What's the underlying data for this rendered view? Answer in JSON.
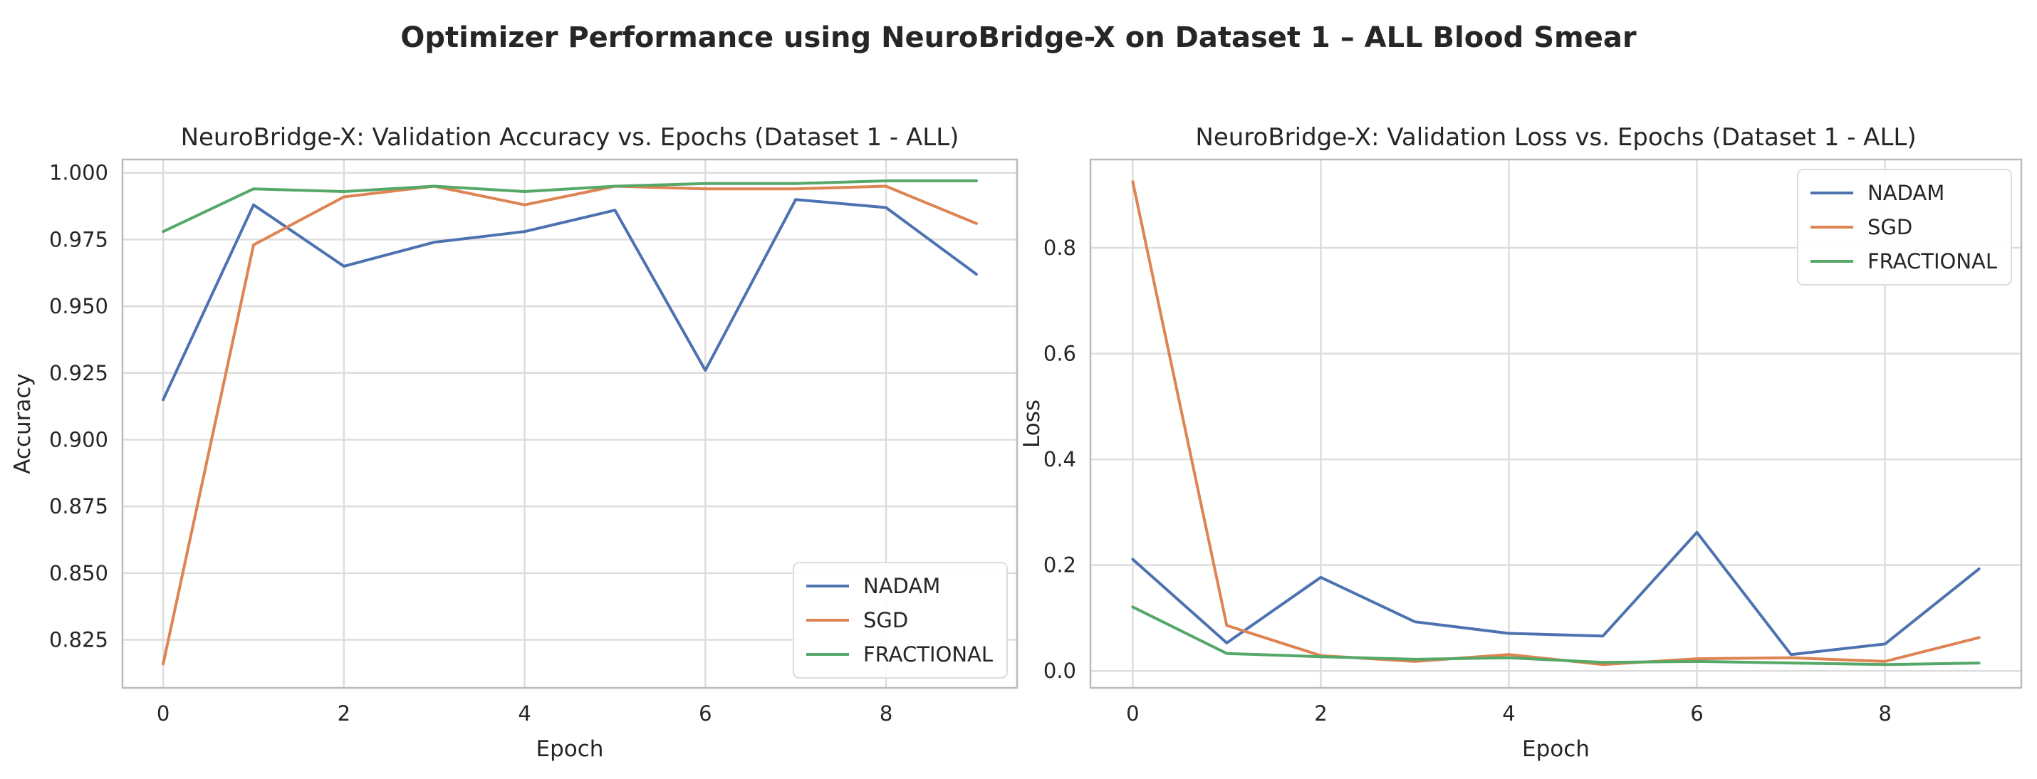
{
  "figure": {
    "suptitle": "Optimizer Performance using NeuroBridge-X on Dataset 1 – ALL Blood Smear"
  },
  "colors": {
    "NADAM": "#4c72b0",
    "SGD": "#dd8452",
    "FRACTIONAL": "#55a868",
    "grid": "#dddddd",
    "spine": "#bbbbbb"
  },
  "chart_data": [
    {
      "type": "line",
      "title": "NeuroBridge-X: Validation Accuracy vs. Epochs (Dataset 1 - ALL)",
      "xlabel": "Epoch",
      "ylabel": "Accuracy",
      "x": [
        0,
        1,
        2,
        3,
        4,
        5,
        6,
        7,
        8,
        9
      ],
      "xlim": [
        -0.45,
        9.45
      ],
      "ylim": [
        0.807,
        1.005
      ],
      "xticks": [
        0,
        2,
        4,
        6,
        8
      ],
      "xtick_labels": [
        "0",
        "2",
        "4",
        "6",
        "8"
      ],
      "yticks": [
        0.825,
        0.85,
        0.875,
        0.9,
        0.925,
        0.95,
        0.975,
        1.0
      ],
      "ytick_labels": [
        "0.825",
        "0.850",
        "0.875",
        "0.900",
        "0.925",
        "0.950",
        "0.975",
        "1.000"
      ],
      "grid": true,
      "legend_position": "lower-right",
      "series": [
        {
          "name": "NADAM",
          "values": [
            0.915,
            0.988,
            0.965,
            0.974,
            0.978,
            0.986,
            0.926,
            0.99,
            0.987,
            0.962
          ]
        },
        {
          "name": "SGD",
          "values": [
            0.816,
            0.973,
            0.991,
            0.995,
            0.988,
            0.995,
            0.994,
            0.994,
            0.995,
            0.981
          ]
        },
        {
          "name": "FRACTIONAL",
          "values": [
            0.978,
            0.994,
            0.993,
            0.995,
            0.993,
            0.995,
            0.996,
            0.996,
            0.997,
            0.997
          ]
        }
      ]
    },
    {
      "type": "line",
      "title": "NeuroBridge-X: Validation Loss vs. Epochs (Dataset 1 - ALL)",
      "xlabel": "Epoch",
      "ylabel": "Loss",
      "x": [
        0,
        1,
        2,
        3,
        4,
        5,
        6,
        7,
        8,
        9
      ],
      "xlim": [
        -0.45,
        9.45
      ],
      "ylim": [
        -0.032,
        0.967
      ],
      "xticks": [
        0,
        2,
        4,
        6,
        8
      ],
      "xtick_labels": [
        "0",
        "2",
        "4",
        "6",
        "8"
      ],
      "yticks": [
        0.0,
        0.2,
        0.4,
        0.6,
        0.8
      ],
      "ytick_labels": [
        "0.0",
        "0.2",
        "0.4",
        "0.6",
        "0.8"
      ],
      "grid": true,
      "legend_position": "top-right",
      "series": [
        {
          "name": "NADAM",
          "values": [
            0.211,
            0.053,
            0.177,
            0.093,
            0.071,
            0.066,
            0.262,
            0.031,
            0.051,
            0.193
          ]
        },
        {
          "name": "SGD",
          "values": [
            0.925,
            0.086,
            0.029,
            0.018,
            0.031,
            0.012,
            0.023,
            0.025,
            0.018,
            0.063
          ]
        },
        {
          "name": "FRACTIONAL",
          "values": [
            0.121,
            0.033,
            0.027,
            0.022,
            0.025,
            0.016,
            0.018,
            0.015,
            0.012,
            0.015
          ]
        }
      ]
    }
  ]
}
